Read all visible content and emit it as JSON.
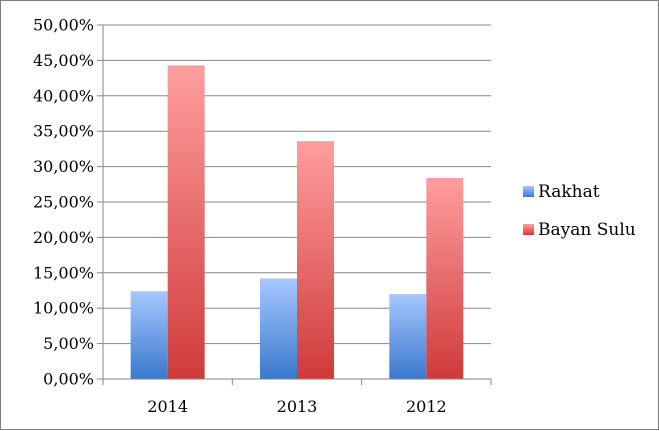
{
  "chart_data": {
    "type": "bar",
    "categories": [
      "2014",
      "2013",
      "2012"
    ],
    "series": [
      {
        "name": "Rakhat",
        "values": [
          12.4,
          14.2,
          12.0
        ],
        "color_top": "#a6c8ff",
        "color_bottom": "#3a78cc"
      },
      {
        "name": "Bayan Sulu",
        "values": [
          44.3,
          33.6,
          28.4
        ],
        "color_top": "#ff9e9e",
        "color_bottom": "#cf3a3a"
      }
    ],
    "y_ticks": [
      "0,00%",
      "5,00%",
      "10,00%",
      "15,00%",
      "20,00%",
      "25,00%",
      "30,00%",
      "35,00%",
      "40,00%",
      "45,00%",
      "50,00%"
    ],
    "ylim": [
      0,
      50
    ],
    "ytick_step": 5,
    "grid": true,
    "legend": "right",
    "title": "",
    "xlabel": "",
    "ylabel": ""
  }
}
